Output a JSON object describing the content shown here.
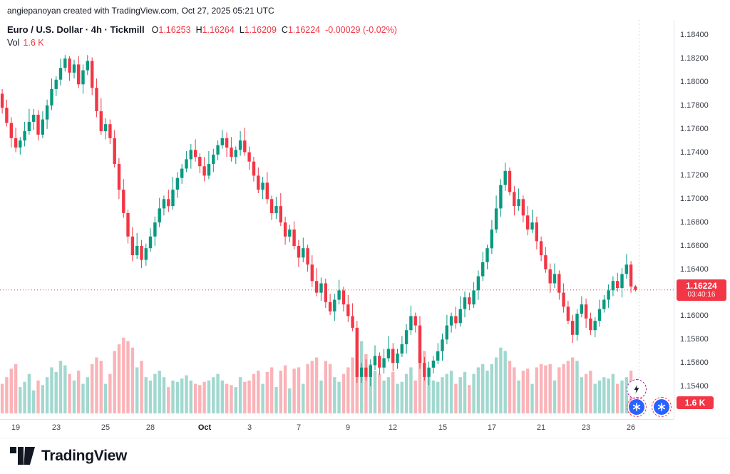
{
  "attribution": "angiepanoyan created with TradingView.com, Oct 27, 2025 05:21 UTC",
  "legend": {
    "instrument": "Euro / U.S. Dollar · 4h · Tickmill",
    "o_label": "O",
    "o": "1.16253",
    "h_label": "H",
    "h": "1.16264",
    "l_label": "L",
    "l": "1.16209",
    "c_label": "C",
    "c": "1.16224",
    "change": "-0.00029 (-0.02%)",
    "vol_label": "Vol",
    "vol_value": "1.6 K"
  },
  "price_axis": {
    "labels": [
      "1.18400",
      "1.18200",
      "1.18000",
      "1.17800",
      "1.17600",
      "1.17400",
      "1.17200",
      "1.17000",
      "1.16800",
      "1.16600",
      "1.16400",
      "1.16200",
      "1.16000",
      "1.15800",
      "1.15600",
      "1.15400"
    ],
    "current_price_badge": {
      "price": "1.16224",
      "countdown": "03:40:16",
      "color": "#F23645"
    },
    "volume_badge": {
      "text": "1.6 K",
      "color": "#F23645"
    }
  },
  "time_axis": {
    "labels": [
      {
        "text": "19",
        "slot": 3
      },
      {
        "text": "23",
        "slot": 12
      },
      {
        "text": "25",
        "slot": 23
      },
      {
        "text": "28",
        "slot": 33
      },
      {
        "text": "Oct",
        "slot": 45,
        "bold": true
      },
      {
        "text": "3",
        "slot": 55
      },
      {
        "text": "7",
        "slot": 66
      },
      {
        "text": "9",
        "slot": 77
      },
      {
        "text": "12",
        "slot": 87
      },
      {
        "text": "15",
        "slot": 98
      },
      {
        "text": "17",
        "slot": 109
      },
      {
        "text": "21",
        "slot": 120
      },
      {
        "text": "23",
        "slot": 130
      },
      {
        "text": "26",
        "slot": 140
      }
    ]
  },
  "footer": {
    "brand": "TradingView"
  },
  "overlay_icons": {
    "lightning": "quick-reaction-lightning",
    "reaction_left": "reaction-bubble",
    "reaction_right": "reaction-bubble"
  },
  "chart_data": {
    "type": "candlestick",
    "title": "Euro / U.S. Dollar · 4h · Tickmill",
    "interval": "4h",
    "current_price": 1.16224,
    "current_volume": 1600,
    "price_range": [
      1.1512,
      1.1853
    ],
    "y_ticks": [
      1.184,
      1.182,
      1.18,
      1.178,
      1.176,
      1.174,
      1.172,
      1.17,
      1.168,
      1.166,
      1.164,
      1.162,
      1.16,
      1.158,
      1.156,
      1.154
    ],
    "slots": 150,
    "session_break_slot": 142.3,
    "volume_max": 13000,
    "volume_height": 120,
    "volume_base": 552,
    "legend_position": "top-left",
    "grid": false,
    "colors": {
      "up": "#089981",
      "down": "#F23645",
      "volume_up": "rgba(8,153,129,0.38)",
      "volume_down": "rgba(242,54,69,0.38)",
      "axis_text": "#363a45",
      "badge": "#F23645"
    },
    "candles": [
      [
        1.179,
        1.1794,
        1.1773,
        1.1778,
        4500
      ],
      [
        1.1778,
        1.1785,
        1.1762,
        1.1765,
        5500
      ],
      [
        1.1765,
        1.177,
        1.1744,
        1.1752,
        6800
      ],
      [
        1.1752,
        1.1761,
        1.174,
        1.1744,
        7500
      ],
      [
        1.1744,
        1.1753,
        1.1738,
        1.175,
        4000
      ],
      [
        1.175,
        1.1766,
        1.1745,
        1.1758,
        4800
      ],
      [
        1.1758,
        1.1777,
        1.1755,
        1.1766,
        6000
      ],
      [
        1.1766,
        1.1777,
        1.1759,
        1.1772,
        3500
      ],
      [
        1.1772,
        1.1776,
        1.175,
        1.1755,
        5000
      ],
      [
        1.1755,
        1.1775,
        1.1752,
        1.1768,
        4300
      ],
      [
        1.1768,
        1.1785,
        1.176,
        1.178,
        5500
      ],
      [
        1.178,
        1.1803,
        1.1776,
        1.1794,
        7000
      ],
      [
        1.1794,
        1.1805,
        1.1788,
        1.1802,
        6300
      ],
      [
        1.1802,
        1.182,
        1.1797,
        1.1812,
        8000
      ],
      [
        1.1812,
        1.1823,
        1.1809,
        1.182,
        7300
      ],
      [
        1.182,
        1.1822,
        1.1801,
        1.1808,
        6000
      ],
      [
        1.1808,
        1.1819,
        1.1803,
        1.1815,
        5000
      ],
      [
        1.1815,
        1.1822,
        1.1795,
        1.1798,
        6500
      ],
      [
        1.1798,
        1.1815,
        1.179,
        1.181,
        4500
      ],
      [
        1.181,
        1.1823,
        1.1806,
        1.1818,
        5500
      ],
      [
        1.1818,
        1.1821,
        1.1789,
        1.1795,
        7500
      ],
      [
        1.1795,
        1.1803,
        1.177,
        1.1775,
        8500
      ],
      [
        1.1775,
        1.1786,
        1.1755,
        1.1758,
        8000
      ],
      [
        1.1758,
        1.1769,
        1.1751,
        1.1764,
        4500
      ],
      [
        1.1764,
        1.1768,
        1.1747,
        1.1752,
        6000
      ],
      [
        1.1752,
        1.1759,
        1.1727,
        1.173,
        9500
      ],
      [
        1.173,
        1.1735,
        1.17,
        1.1708,
        10500
      ],
      [
        1.1708,
        1.1717,
        1.1684,
        1.1688,
        11500
      ],
      [
        1.1688,
        1.1691,
        1.1662,
        1.1668,
        11000
      ],
      [
        1.1668,
        1.1676,
        1.1647,
        1.1652,
        10000
      ],
      [
        1.1652,
        1.1671,
        1.1649,
        1.166,
        7000
      ],
      [
        1.166,
        1.1665,
        1.1641,
        1.1648,
        8000
      ],
      [
        1.1648,
        1.1662,
        1.1643,
        1.1658,
        5500
      ],
      [
        1.1658,
        1.1675,
        1.1655,
        1.1668,
        5000
      ],
      [
        1.1668,
        1.1685,
        1.166,
        1.168,
        6000
      ],
      [
        1.168,
        1.1701,
        1.1676,
        1.1692,
        6500
      ],
      [
        1.1692,
        1.1703,
        1.1686,
        1.17,
        5500
      ],
      [
        1.17,
        1.1708,
        1.1689,
        1.1694,
        4000
      ],
      [
        1.1694,
        1.1719,
        1.1691,
        1.1708,
        5000
      ],
      [
        1.1708,
        1.1723,
        1.1701,
        1.1718,
        4800
      ],
      [
        1.1718,
        1.173,
        1.1713,
        1.1726,
        5300
      ],
      [
        1.1726,
        1.1741,
        1.1723,
        1.1734,
        5800
      ],
      [
        1.1734,
        1.1747,
        1.1726,
        1.1742,
        5000
      ],
      [
        1.1742,
        1.1751,
        1.1732,
        1.1736,
        4500
      ],
      [
        1.1736,
        1.1739,
        1.1722,
        1.1728,
        4300
      ],
      [
        1.1728,
        1.1736,
        1.1715,
        1.172,
        4800
      ],
      [
        1.172,
        1.1741,
        1.1717,
        1.173,
        5000
      ],
      [
        1.173,
        1.1743,
        1.1723,
        1.1738,
        5500
      ],
      [
        1.1738,
        1.175,
        1.1733,
        1.1746,
        6000
      ],
      [
        1.1746,
        1.1759,
        1.1743,
        1.1752,
        5000
      ],
      [
        1.1752,
        1.1757,
        1.1736,
        1.1744,
        4500
      ],
      [
        1.1744,
        1.1753,
        1.1732,
        1.1736,
        4300
      ],
      [
        1.1736,
        1.1745,
        1.173,
        1.1742,
        4000
      ],
      [
        1.1742,
        1.1758,
        1.1737,
        1.175,
        5500
      ],
      [
        1.175,
        1.1761,
        1.1737,
        1.174,
        4800
      ],
      [
        1.174,
        1.1745,
        1.1725,
        1.1732,
        5000
      ],
      [
        1.1732,
        1.1736,
        1.1715,
        1.172,
        6000
      ],
      [
        1.172,
        1.1727,
        1.1705,
        1.1708,
        6500
      ],
      [
        1.1708,
        1.1719,
        1.17,
        1.1714,
        4500
      ],
      [
        1.1714,
        1.1723,
        1.1696,
        1.17,
        6300
      ],
      [
        1.17,
        1.1703,
        1.1682,
        1.1688,
        7000
      ],
      [
        1.1688,
        1.1702,
        1.1683,
        1.1694,
        4000
      ],
      [
        1.1694,
        1.1705,
        1.1677,
        1.168,
        6500
      ],
      [
        1.168,
        1.1685,
        1.1661,
        1.1668,
        7300
      ],
      [
        1.1668,
        1.1678,
        1.1663,
        1.1674,
        3800
      ],
      [
        1.1674,
        1.1681,
        1.1657,
        1.166,
        6800
      ],
      [
        1.166,
        1.1665,
        1.1642,
        1.165,
        7000
      ],
      [
        1.165,
        1.1667,
        1.1646,
        1.1658,
        4500
      ],
      [
        1.1658,
        1.1661,
        1.1638,
        1.1644,
        7500
      ],
      [
        1.1644,
        1.1652,
        1.1625,
        1.163,
        8000
      ],
      [
        1.163,
        1.1641,
        1.1617,
        1.162,
        8500
      ],
      [
        1.162,
        1.1633,
        1.1613,
        1.1628,
        5000
      ],
      [
        1.1628,
        1.1632,
        1.1607,
        1.1612,
        8000
      ],
      [
        1.1612,
        1.1619,
        1.1601,
        1.1604,
        7500
      ],
      [
        1.1604,
        1.1619,
        1.1596,
        1.1614,
        5500
      ],
      [
        1.1614,
        1.1631,
        1.161,
        1.1622,
        4800
      ],
      [
        1.1622,
        1.1625,
        1.1604,
        1.161,
        6000
      ],
      [
        1.161,
        1.1618,
        1.1595,
        1.16,
        7000
      ],
      [
        1.16,
        1.1611,
        1.1587,
        1.159,
        8500
      ],
      [
        1.159,
        1.1596,
        1.1543,
        1.1548,
        13000
      ],
      [
        1.1548,
        1.156,
        1.1543,
        1.1556,
        11000
      ],
      [
        1.1556,
        1.1563,
        1.1545,
        1.1548,
        9000
      ],
      [
        1.1548,
        1.1563,
        1.154,
        1.1558,
        7500
      ],
      [
        1.1558,
        1.1575,
        1.1554,
        1.1566,
        6500
      ],
      [
        1.1566,
        1.1569,
        1.155,
        1.1556,
        6000
      ],
      [
        1.1556,
        1.1572,
        1.1551,
        1.1564,
        5000
      ],
      [
        1.1564,
        1.1583,
        1.1561,
        1.1572,
        5500
      ],
      [
        1.1572,
        1.1577,
        1.1553,
        1.156,
        6300
      ],
      [
        1.156,
        1.1572,
        1.1555,
        1.1568,
        4500
      ],
      [
        1.1568,
        1.1583,
        1.1565,
        1.1576,
        4800
      ],
      [
        1.1576,
        1.1593,
        1.1568,
        1.1588,
        6000
      ],
      [
        1.1588,
        1.1609,
        1.1584,
        1.16,
        7000
      ],
      [
        1.16,
        1.1603,
        1.1586,
        1.1592,
        5000
      ],
      [
        1.1592,
        1.16,
        1.1555,
        1.156,
        9000
      ],
      [
        1.156,
        1.1565,
        1.1545,
        1.1548,
        9500
      ],
      [
        1.1548,
        1.1561,
        1.1541,
        1.1556,
        6500
      ],
      [
        1.1556,
        1.1566,
        1.1551,
        1.1562,
        5000
      ],
      [
        1.1562,
        1.1577,
        1.1559,
        1.157,
        4800
      ],
      [
        1.157,
        1.1585,
        1.1562,
        1.158,
        5500
      ],
      [
        1.158,
        1.1601,
        1.1576,
        1.1592,
        6000
      ],
      [
        1.1592,
        1.1603,
        1.1586,
        1.16,
        6500
      ],
      [
        1.16,
        1.1608,
        1.1589,
        1.1594,
        4500
      ],
      [
        1.1594,
        1.1617,
        1.1591,
        1.1606,
        5500
      ],
      [
        1.1606,
        1.1621,
        1.1599,
        1.1616,
        6300
      ],
      [
        1.1616,
        1.162,
        1.1605,
        1.161,
        4300
      ],
      [
        1.161,
        1.1629,
        1.1607,
        1.1622,
        6000
      ],
      [
        1.1622,
        1.1639,
        1.1614,
        1.1634,
        7000
      ],
      [
        1.1634,
        1.1655,
        1.163,
        1.1646,
        7500
      ],
      [
        1.1646,
        1.1661,
        1.164,
        1.1658,
        6500
      ],
      [
        1.1658,
        1.1682,
        1.1653,
        1.1674,
        7500
      ],
      [
        1.1674,
        1.1703,
        1.1671,
        1.1692,
        8500
      ],
      [
        1.1692,
        1.1717,
        1.1685,
        1.1712,
        10000
      ],
      [
        1.1712,
        1.1731,
        1.1707,
        1.1724,
        9500
      ],
      [
        1.1724,
        1.1727,
        1.1703,
        1.1706,
        8000
      ],
      [
        1.1706,
        1.1711,
        1.1686,
        1.1694,
        7000
      ],
      [
        1.1694,
        1.1709,
        1.169,
        1.17,
        5000
      ],
      [
        1.17,
        1.1703,
        1.168,
        1.1686,
        6500
      ],
      [
        1.1686,
        1.1694,
        1.1669,
        1.1674,
        6800
      ],
      [
        1.1674,
        1.1691,
        1.1671,
        1.168,
        4500
      ],
      [
        1.168,
        1.1685,
        1.1657,
        1.1664,
        7000
      ],
      [
        1.1664,
        1.1668,
        1.1647,
        1.1652,
        7500
      ],
      [
        1.1652,
        1.1659,
        1.1637,
        1.164,
        7300
      ],
      [
        1.164,
        1.1645,
        1.162,
        1.1628,
        7500
      ],
      [
        1.1628,
        1.1645,
        1.1624,
        1.1636,
        5000
      ],
      [
        1.1636,
        1.1639,
        1.1614,
        1.162,
        7000
      ],
      [
        1.162,
        1.1628,
        1.1603,
        1.1608,
        7500
      ],
      [
        1.1608,
        1.1613,
        1.1593,
        1.1596,
        8000
      ],
      [
        1.1596,
        1.1601,
        1.1577,
        1.1584,
        8500
      ],
      [
        1.1584,
        1.1606,
        1.1579,
        1.1602,
        8000
      ],
      [
        1.1602,
        1.1617,
        1.1599,
        1.161,
        5500
      ],
      [
        1.161,
        1.1615,
        1.159,
        1.1598,
        6000
      ],
      [
        1.1598,
        1.1603,
        1.1584,
        1.1588,
        6500
      ],
      [
        1.1588,
        1.1599,
        1.1582,
        1.1596,
        4500
      ],
      [
        1.1596,
        1.1614,
        1.1591,
        1.1606,
        5000
      ],
      [
        1.1606,
        1.1618,
        1.1603,
        1.1614,
        5500
      ],
      [
        1.1614,
        1.1627,
        1.1607,
        1.1622,
        5300
      ],
      [
        1.1622,
        1.1634,
        1.1617,
        1.163,
        6000
      ],
      [
        1.163,
        1.1637,
        1.1621,
        1.1624,
        4500
      ],
      [
        1.1624,
        1.1641,
        1.1616,
        1.1636,
        5000
      ],
      [
        1.1636,
        1.1653,
        1.1632,
        1.1644,
        5500
      ],
      [
        1.1644,
        1.1647,
        1.162,
        1.16253,
        6500
      ],
      [
        1.16253,
        1.16264,
        1.16209,
        1.16224,
        1600
      ]
    ]
  }
}
